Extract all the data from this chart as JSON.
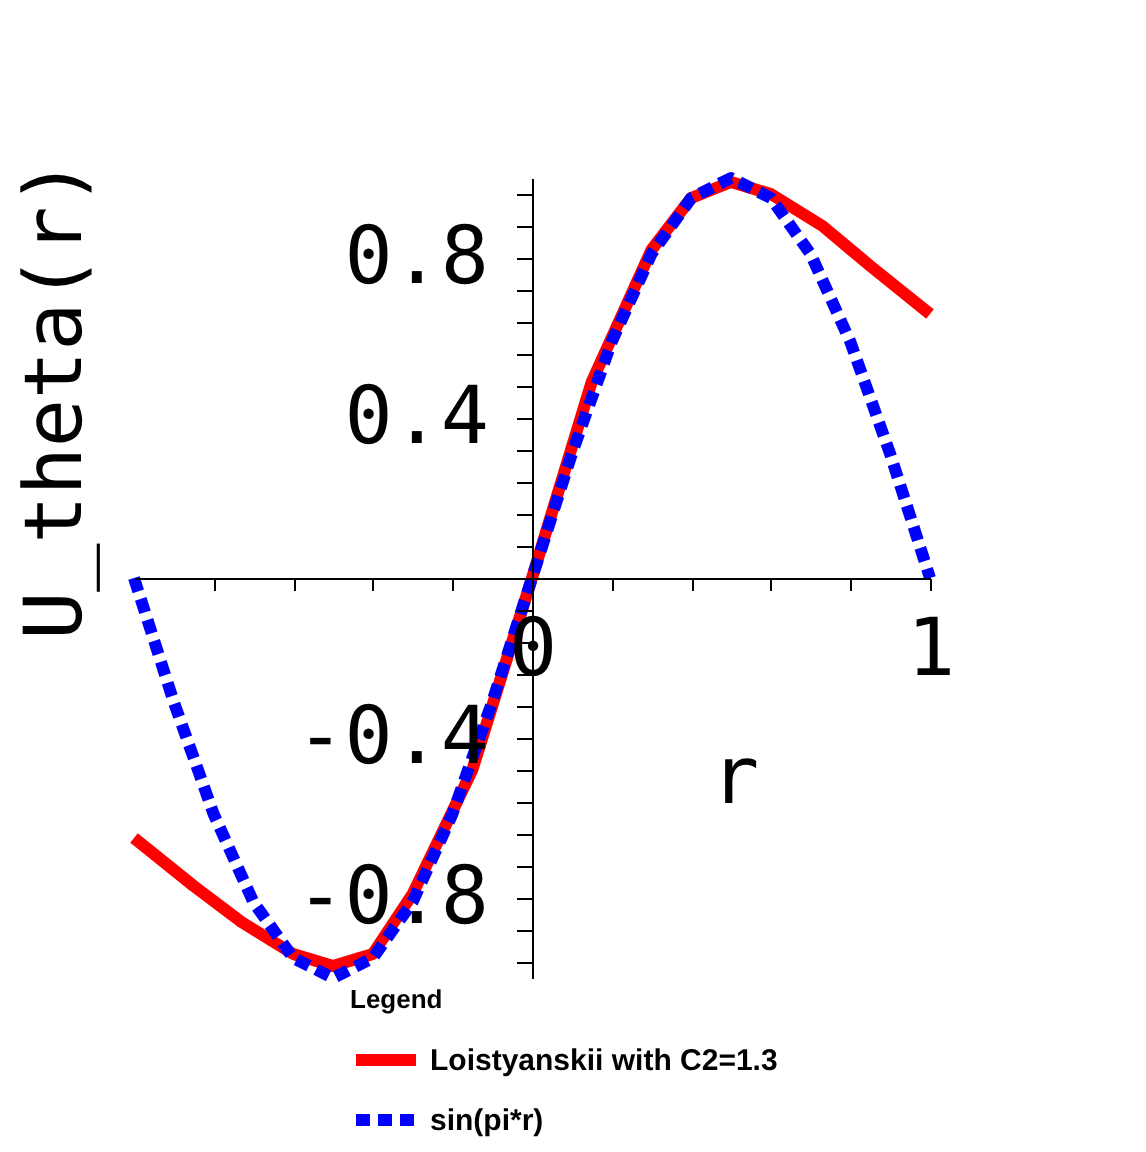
{
  "chart_data": {
    "type": "line",
    "xlabel": "r",
    "ylabel": "U_theta(r)",
    "legend_title": "Legend",
    "legend": "bottom",
    "grid": false,
    "marker": "none",
    "xlim": [
      -1,
      1
    ],
    "ylim": [
      -1,
      1
    ],
    "xticks": [
      {
        "value": -0.8,
        "label": null
      },
      {
        "value": -0.6,
        "label": null
      },
      {
        "value": -0.4,
        "label": null
      },
      {
        "value": -0.2,
        "label": null
      },
      {
        "value": 0.2,
        "label": null
      },
      {
        "value": 0.4,
        "label": null
      },
      {
        "value": 0.6,
        "label": null
      },
      {
        "value": 0.8,
        "label": null
      },
      0,
      1
    ],
    "yticks": [
      {
        "value": -0.96,
        "label": null
      },
      {
        "value": -0.88,
        "label": null
      },
      -0.8,
      {
        "value": -0.72,
        "label": null
      },
      {
        "value": -0.64,
        "label": null
      },
      {
        "value": -0.56,
        "label": null
      },
      {
        "value": -0.48,
        "label": null
      },
      -0.4,
      {
        "value": -0.32,
        "label": null
      },
      {
        "value": -0.24,
        "label": null
      },
      {
        "value": -0.16,
        "label": null
      },
      {
        "value": -0.08,
        "label": null
      },
      {
        "value": 0,
        "label": null
      },
      {
        "value": 0.08,
        "label": null
      },
      {
        "value": 0.16,
        "label": null
      },
      {
        "value": 0.24,
        "label": null
      },
      {
        "value": 0.32,
        "label": null
      },
      0.4,
      {
        "value": 0.48,
        "label": null
      },
      {
        "value": 0.56,
        "label": null
      },
      {
        "value": 0.64,
        "label": null
      },
      {
        "value": 0.72,
        "label": null
      },
      0.8,
      {
        "value": 0.88,
        "label": null
      },
      {
        "value": 0.96,
        "label": null
      }
    ],
    "series": [
      {
        "name": "Loistyanskii with C2=1.3",
        "color": "#ff0000",
        "line_style": "solid",
        "x": [
          -1,
          -0.85,
          -0.73,
          -0.6,
          -0.5,
          -0.4,
          -0.3,
          -0.15,
          0,
          0.15,
          0.3,
          0.4,
          0.5,
          0.6,
          0.73,
          0.85,
          1
        ],
        "values": [
          -0.65,
          -0.77,
          -0.86,
          -0.94,
          -0.97,
          -0.94,
          -0.79,
          -0.48,
          0,
          0.49,
          0.82,
          0.95,
          0.99,
          0.96,
          0.88,
          0.78,
          0.66
        ]
      },
      {
        "name": "sin(pi*r)",
        "color": "#0000ff",
        "line_style": "dashed",
        "x": [
          -1,
          -0.9,
          -0.8,
          -0.7,
          -0.6,
          -0.5,
          -0.4,
          -0.3,
          -0.2,
          -0.1,
          0,
          0.1,
          0.2,
          0.3,
          0.4,
          0.5,
          0.6,
          0.7,
          0.8,
          0.9,
          1
        ],
        "values": [
          0,
          -0.31,
          -0.59,
          -0.81,
          -0.95,
          -1,
          -0.95,
          -0.81,
          -0.59,
          -0.31,
          0,
          0.31,
          0.59,
          0.81,
          0.95,
          1,
          0.95,
          0.81,
          0.59,
          0.31,
          0
        ]
      }
    ]
  }
}
